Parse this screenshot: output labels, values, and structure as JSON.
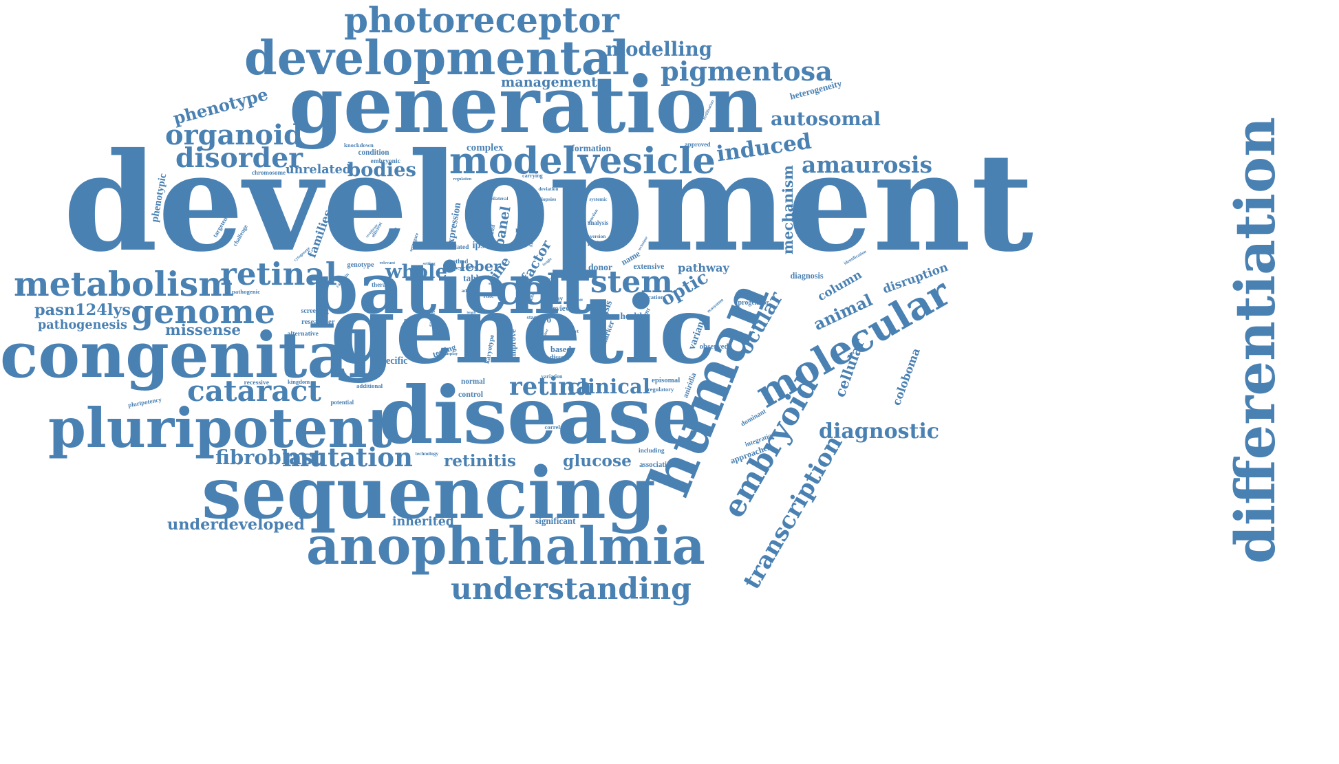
{
  "theme": {
    "word_color": "#4a81b3",
    "background": "#ffffff"
  },
  "words": [
    "development",
    "generation",
    "genetic",
    "disease",
    "human",
    "differentiation",
    "sequencing",
    "congenital",
    "patient",
    "pluripotent",
    "developmental",
    "photoreceptor",
    "anophthalmia",
    "molecular",
    "embryoid",
    "metabolism",
    "genome",
    "understanding",
    "transcription",
    "model",
    "vesicle",
    "cell",
    "stem",
    "retinal",
    "cataract",
    "optic",
    "organoid",
    "phenotype",
    "pigmentosa",
    "induced",
    "amaurosis",
    "ocular",
    "animal",
    "column",
    "retina",
    "clinical",
    "mutation",
    "retinitis",
    "glucose",
    "fibroblast",
    "modelling",
    "autosomal",
    "diagnostic",
    "coloboma",
    "disorder",
    "bodies",
    "disruption",
    "variant",
    "whole",
    "leber",
    "line",
    "factor",
    "cellular",
    "families",
    "missense",
    "pasn124lys",
    "pathogenesis",
    "underdeveloped",
    "inherited",
    "heterogeneity",
    "mechanism",
    "phenotypic",
    "targeted",
    "management",
    "expression",
    "panel",
    "unrelated",
    "complex",
    "formation",
    "mouse",
    "efficient",
    "challenge",
    "condition",
    "chromosome",
    "knockdown",
    "embryonic",
    "regulation",
    "carrying",
    "approved",
    "fertilisation",
    "pathway",
    "name",
    "extensive",
    "donor",
    "novel",
    "ipscs",
    "table",
    "adult",
    "dominant",
    "integration",
    "approaches",
    "healthy",
    "segment",
    "basis",
    "marker",
    "observed",
    "aniridia",
    "episomal",
    "regulatory",
    "including",
    "association",
    "correlation",
    "significant",
    "technology",
    "potential",
    "pluripotency",
    "recessive",
    "kingdom",
    "additional",
    "specific",
    "testing",
    "display",
    "normal",
    "control",
    "improve",
    "karyotype",
    "report",
    "based",
    "dissect",
    "researcher",
    "alternative",
    "known",
    "sanger",
    "related",
    "method",
    "vitro",
    "review",
    "many",
    "cause",
    "ecosystem",
    "progenitor",
    "location",
    "identification",
    "diagnosis",
    "systemic",
    "function",
    "analysis",
    "version",
    "project",
    "standard",
    "associated",
    "deviation",
    "biopsies",
    "bilateral",
    "pathogenic",
    "cytogenetic",
    "vertebrate",
    "genotype",
    "relevant",
    "cadherin",
    "therapies",
    "segregate",
    "screening",
    "setting",
    "insight",
    "technique",
    "variation",
    "peer",
    "level",
    "rate",
    "study",
    "provide",
    "length",
    "exhibit",
    "express",
    "cohort",
    "number",
    "skills",
    "better",
    "large",
    "target",
    "drug",
    "stage",
    "future"
  ]
}
